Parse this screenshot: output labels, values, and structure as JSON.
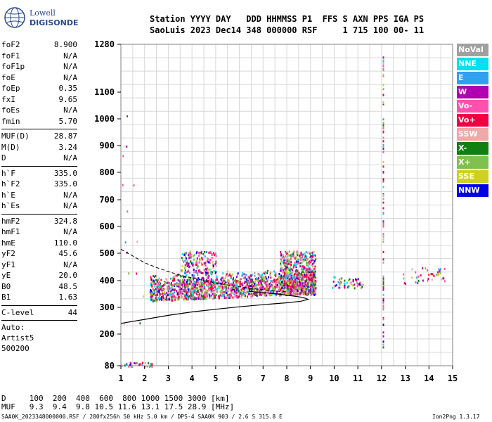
{
  "logo": {
    "line1": "Lowell",
    "line2": "DIGISONDE"
  },
  "header": {
    "line1": "Station YYYY DAY   DDD HHMMSS P1  FFS S AXN PPS IGA PS",
    "line2": "SaoLuis 2023 Dec14 348 000000 RSF     1 715 100 00- 11"
  },
  "params": [
    {
      "name": "foF2",
      "value": "8.900"
    },
    {
      "name": "foF1",
      "value": "N/A"
    },
    {
      "name": "foF1p",
      "value": "N/A"
    },
    {
      "name": "foE",
      "value": "N/A"
    },
    {
      "name": "foEp",
      "value": "0.35"
    },
    {
      "name": "fxI",
      "value": "9.65"
    },
    {
      "name": "foEs",
      "value": "N/A"
    },
    {
      "name": "fmin",
      "value": "5.70",
      "sep": true
    },
    {
      "name": "MUF(D)",
      "value": "28.87"
    },
    {
      "name": "M(D)",
      "value": "3.24"
    },
    {
      "name": "D",
      "value": "N/A",
      "sep": true
    },
    {
      "name": "h`F",
      "value": "335.0"
    },
    {
      "name": "h`F2",
      "value": "335.0"
    },
    {
      "name": "h`E",
      "value": "N/A"
    },
    {
      "name": "h`Es",
      "value": "N/A",
      "sep": true
    },
    {
      "name": "hmF2",
      "value": "324.8"
    },
    {
      "name": "hmF1",
      "value": "N/A"
    },
    {
      "name": "hmE",
      "value": "110.0"
    },
    {
      "name": "yF2",
      "value": "45.6"
    },
    {
      "name": "yF1",
      "value": "N/A"
    },
    {
      "name": "yE",
      "value": "20.0"
    },
    {
      "name": "B0",
      "value": "48.5"
    },
    {
      "name": "B1",
      "value": "1.63",
      "sep": true
    },
    {
      "name": "C-level",
      "value": "44",
      "sep": true
    }
  ],
  "extra": [
    "Auto:",
    "Artist5",
    "500200"
  ],
  "legend": [
    {
      "label": "NoVal",
      "color": "#a0a0a0"
    },
    {
      "label": "NNE",
      "color": "#00e0f0"
    },
    {
      "label": "E",
      "color": "#30a0f0"
    },
    {
      "label": "W",
      "color": "#b000b0"
    },
    {
      "label": "Vo-",
      "color": "#ff50b0"
    },
    {
      "label": "Vo+",
      "color": "#f00040"
    },
    {
      "label": "SSW",
      "color": "#f0a8a8"
    },
    {
      "label": "X-",
      "color": "#108010"
    },
    {
      "label": "X+",
      "color": "#80c050"
    },
    {
      "label": "SSE",
      "color": "#d0d020"
    },
    {
      "label": "NNW",
      "color": "#0000e0"
    }
  ],
  "footer": {
    "d_line": "D     100  200  400  600  800 1000 1500 3000 [km]",
    "muf_line": "MUF   9.3  9.4  9.8 10.5 11.6 13.1 17.5 28.9 [MHz]",
    "file_line": "SAA0K_2023348000000.RSF / 280fx256h 50 kHz 5.0 km / DPS-4 SAA0K 903 / 2.6 S 315.8 E",
    "version": "Ion2Png 1.3.17"
  },
  "chart_data": {
    "type": "scatter",
    "x_ticks": [
      1,
      2,
      3,
      4,
      5,
      6,
      7,
      8,
      9,
      10,
      11,
      12,
      13,
      14,
      15
    ],
    "y_ticks": [
      80,
      200,
      300,
      400,
      500,
      600,
      700,
      800,
      900,
      1000,
      1100,
      1280
    ],
    "xlim": [
      1,
      15
    ],
    "ylim": [
      80,
      1280
    ],
    "y_scale": "nonlinear (compressed at low heights)",
    "grid": true,
    "clusters": [
      {
        "x_range": [
          2.2,
          9.2
        ],
        "y_range": [
          325,
          420
        ],
        "note": "dense main F2 trace"
      },
      {
        "x_range": [
          3.5,
          5.0
        ],
        "y_range": [
          430,
          510
        ]
      },
      {
        "x_range": [
          7.7,
          9.2
        ],
        "y_range": [
          350,
          510
        ]
      },
      {
        "x_range": [
          9.9,
          11.2
        ],
        "y_range": [
          375,
          420
        ]
      },
      {
        "x_range": [
          12.9,
          14.7
        ],
        "y_range": [
          390,
          450
        ]
      },
      {
        "x_range": [
          1.0,
          2.3
        ],
        "y_range": [
          80,
          95
        ]
      }
    ],
    "vertical_streak_x": 12.05,
    "profile_solid": [
      [
        1.0,
        240
      ],
      [
        2.0,
        255
      ],
      [
        3.0,
        270
      ],
      [
        4.0,
        283
      ],
      [
        5.0,
        293
      ],
      [
        6.0,
        302
      ],
      [
        7.0,
        310
      ],
      [
        8.0,
        317
      ],
      [
        8.6,
        323
      ],
      [
        8.9,
        330
      ],
      [
        8.7,
        337
      ],
      [
        8.3,
        342
      ],
      [
        7.6,
        350
      ],
      [
        6.4,
        360
      ]
    ],
    "profile_dashed": [
      [
        1.0,
        515
      ],
      [
        1.5,
        490
      ],
      [
        2.0,
        465
      ],
      [
        2.5,
        448
      ],
      [
        3.0,
        433
      ],
      [
        3.5,
        420
      ],
      [
        4.0,
        410
      ],
      [
        4.5,
        400
      ],
      [
        5.0,
        391
      ],
      [
        5.5,
        384
      ],
      [
        6.0,
        377
      ],
      [
        6.5,
        371
      ],
      [
        7.0,
        366
      ],
      [
        7.5,
        361
      ],
      [
        8.0,
        358
      ]
    ]
  }
}
